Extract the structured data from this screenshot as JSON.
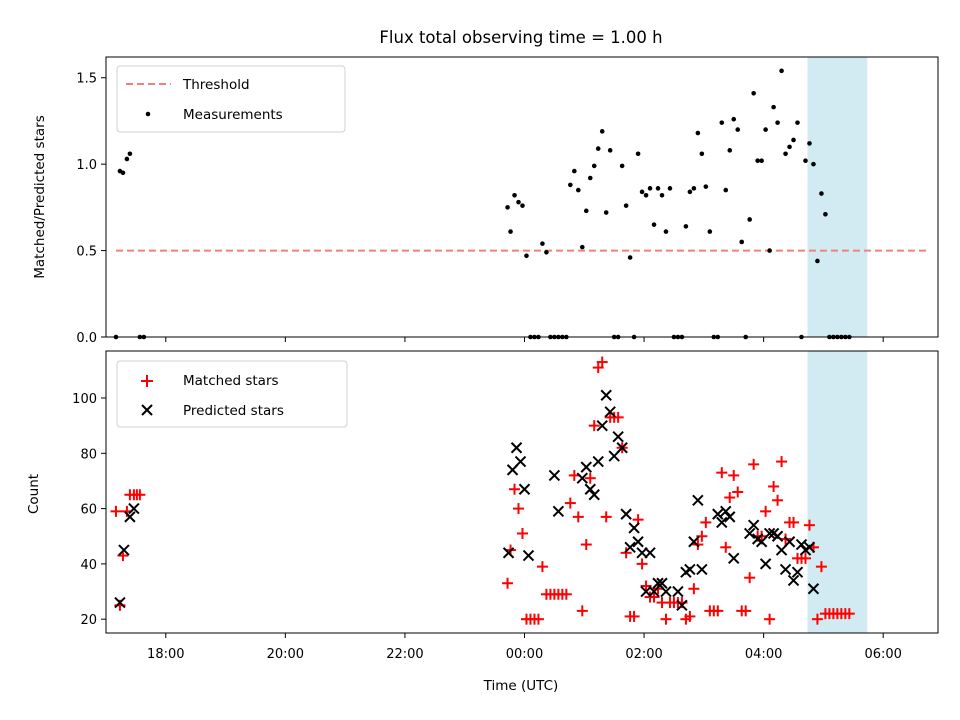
{
  "chart_data": [
    {
      "type": "scatter",
      "title": "Flux total observing time = 1.00 h",
      "xlabel": "",
      "ylabel": "Matched/Predicted stars",
      "xlim": [
        "17:00",
        "06:55"
      ],
      "ylim": [
        0,
        1.62
      ],
      "yticks": [
        "0.0",
        "0.5",
        "1.0",
        "1.5"
      ],
      "legend_position": "top-left",
      "shaded_region": {
        "x": [
          "04:44",
          "05:44"
        ],
        "color": "#add8e6"
      },
      "series": [
        {
          "name": "Threshold",
          "kind": "dashed-line",
          "color": "#f08080",
          "x": [
            "17:10",
            "06:46"
          ],
          "y": [
            0.5,
            0.5
          ]
        },
        {
          "name": "Measurements",
          "kind": "points",
          "color": "#000000",
          "points": [
            [
              "17:10",
              0
            ],
            [
              "17:14",
              0.96
            ],
            [
              "17:17",
              0.95
            ],
            [
              "17:21",
              1.03
            ],
            [
              "17:24",
              1.06
            ],
            [
              "17:34",
              0
            ],
            [
              "17:38",
              0
            ],
            [
              "23:43",
              0.75
            ],
            [
              "23:46",
              0.61
            ],
            [
              "23:50",
              0.82
            ],
            [
              "23:54",
              0.78
            ],
            [
              "23:58",
              0.76
            ],
            [
              "00:02",
              0.47
            ],
            [
              "00:06",
              0
            ],
            [
              "00:10",
              0
            ],
            [
              "00:14",
              0
            ],
            [
              "00:18",
              0.54
            ],
            [
              "00:22",
              0.49
            ],
            [
              "00:26",
              0
            ],
            [
              "00:30",
              0
            ],
            [
              "00:34",
              0
            ],
            [
              "00:38",
              0
            ],
            [
              "00:42",
              0
            ],
            [
              "00:46",
              0.88
            ],
            [
              "00:50",
              0.96
            ],
            [
              "00:54",
              0.85
            ],
            [
              "00:58",
              0.52
            ],
            [
              "01:02",
              0.73
            ],
            [
              "01:06",
              0.92
            ],
            [
              "01:10",
              0.99
            ],
            [
              "01:14",
              1.09
            ],
            [
              "01:18",
              1.19
            ],
            [
              "01:22",
              0.72
            ],
            [
              "01:26",
              1.08
            ],
            [
              "01:30",
              0
            ],
            [
              "01:34",
              0
            ],
            [
              "01:38",
              0.99
            ],
            [
              "01:42",
              0.76
            ],
            [
              "01:46",
              0.46
            ],
            [
              "01:50",
              0
            ],
            [
              "01:54",
              1.06
            ],
            [
              "01:58",
              0.84
            ],
            [
              "02:02",
              0.82
            ],
            [
              "02:06",
              0.86
            ],
            [
              "02:10",
              0.65
            ],
            [
              "02:14",
              0.86
            ],
            [
              "02:18",
              0.82
            ],
            [
              "02:22",
              0.61
            ],
            [
              "02:26",
              0.86
            ],
            [
              "02:30",
              0
            ],
            [
              "02:34",
              0
            ],
            [
              "02:38",
              0
            ],
            [
              "02:42",
              0.64
            ],
            [
              "02:46",
              0.84
            ],
            [
              "02:50",
              0.86
            ],
            [
              "02:54",
              1.18
            ],
            [
              "02:58",
              1.06
            ],
            [
              "03:02",
              0.87
            ],
            [
              "03:06",
              0.61
            ],
            [
              "03:10",
              0
            ],
            [
              "03:14",
              0
            ],
            [
              "03:18",
              1.24
            ],
            [
              "03:22",
              0.85
            ],
            [
              "03:26",
              1.08
            ],
            [
              "03:30",
              1.26
            ],
            [
              "03:34",
              1.2
            ],
            [
              "03:38",
              0.55
            ],
            [
              "03:42",
              0
            ],
            [
              "03:46",
              0.68
            ],
            [
              "03:50",
              1.41
            ],
            [
              "03:54",
              1.02
            ],
            [
              "03:58",
              1.02
            ],
            [
              "04:02",
              1.2
            ],
            [
              "04:06",
              0.5
            ],
            [
              "04:10",
              1.33
            ],
            [
              "04:14",
              1.24
            ],
            [
              "04:18",
              1.54
            ],
            [
              "04:22",
              1.06
            ],
            [
              "04:26",
              1.1
            ],
            [
              "04:30",
              1.14
            ],
            [
              "04:34",
              1.24
            ],
            [
              "04:38",
              0
            ],
            [
              "04:42",
              1.02
            ],
            [
              "04:46",
              1.12
            ],
            [
              "04:50",
              1.0
            ],
            [
              "04:54",
              0.44
            ],
            [
              "04:58",
              0.83
            ],
            [
              "05:02",
              0.71
            ],
            [
              "05:06",
              0
            ],
            [
              "05:10",
              0
            ],
            [
              "05:14",
              0
            ],
            [
              "05:18",
              0
            ],
            [
              "05:22",
              0
            ],
            [
              "05:26",
              0
            ]
          ]
        }
      ]
    },
    {
      "type": "scatter",
      "title": "",
      "xlabel": "Time (UTC)",
      "ylabel": "Count",
      "xlim": [
        "17:00",
        "06:55"
      ],
      "ylim": [
        15,
        117
      ],
      "xticks": [
        "18:00",
        "20:00",
        "22:00",
        "00:00",
        "02:00",
        "04:00",
        "06:00"
      ],
      "yticks": [
        "20",
        "40",
        "60",
        "80",
        "100"
      ],
      "legend_position": "top-left",
      "shaded_region": {
        "x": [
          "04:44",
          "05:44"
        ],
        "color": "#add8e6"
      },
      "series": [
        {
          "name": "Matched stars",
          "marker": "+",
          "color": "#ff0000",
          "points": [
            [
              "17:10",
              59
            ],
            [
              "17:14",
              25
            ],
            [
              "17:17",
              43
            ],
            [
              "17:21",
              59
            ],
            [
              "17:24",
              65
            ],
            [
              "17:28",
              65
            ],
            [
              "17:31",
              65
            ],
            [
              "17:34",
              65
            ],
            [
              "23:43",
              33
            ],
            [
              "23:46",
              45
            ],
            [
              "23:50",
              67
            ],
            [
              "23:54",
              60
            ],
            [
              "23:58",
              51
            ],
            [
              "00:02",
              20
            ],
            [
              "00:06",
              20
            ],
            [
              "00:10",
              20
            ],
            [
              "00:14",
              20
            ],
            [
              "00:18",
              39
            ],
            [
              "00:22",
              29
            ],
            [
              "00:26",
              29
            ],
            [
              "00:30",
              29
            ],
            [
              "00:34",
              29
            ],
            [
              "00:38",
              29
            ],
            [
              "00:42",
              29
            ],
            [
              "00:46",
              62
            ],
            [
              "00:50",
              72
            ],
            [
              "00:54",
              57
            ],
            [
              "00:58",
              23
            ],
            [
              "01:02",
              47
            ],
            [
              "01:06",
              71
            ],
            [
              "01:10",
              90
            ],
            [
              "01:14",
              111
            ],
            [
              "01:18",
              113
            ],
            [
              "01:22",
              57
            ],
            [
              "01:26",
              93
            ],
            [
              "01:30",
              93
            ],
            [
              "01:34",
              93
            ],
            [
              "01:38",
              82
            ],
            [
              "01:42",
              44
            ],
            [
              "01:46",
              21
            ],
            [
              "01:50",
              21
            ],
            [
              "01:54",
              56
            ],
            [
              "01:58",
              40
            ],
            [
              "02:02",
              32
            ],
            [
              "02:06",
              28
            ],
            [
              "02:10",
              28
            ],
            [
              "02:14",
              31
            ],
            [
              "02:18",
              26
            ],
            [
              "02:22",
              20
            ],
            [
              "02:26",
              26
            ],
            [
              "02:30",
              26
            ],
            [
              "02:34",
              26
            ],
            [
              "02:38",
              26
            ],
            [
              "02:42",
              20
            ],
            [
              "02:46",
              21
            ],
            [
              "02:50",
              31
            ],
            [
              "02:54",
              47
            ],
            [
              "02:58",
              50
            ],
            [
              "03:02",
              55
            ],
            [
              "03:06",
              23
            ],
            [
              "03:10",
              23
            ],
            [
              "03:14",
              23
            ],
            [
              "03:18",
              73
            ],
            [
              "03:22",
              46
            ],
            [
              "03:26",
              64
            ],
            [
              "03:30",
              72
            ],
            [
              "03:34",
              66
            ],
            [
              "03:38",
              23
            ],
            [
              "03:42",
              23
            ],
            [
              "03:46",
              35
            ],
            [
              "03:50",
              76
            ],
            [
              "03:54",
              50
            ],
            [
              "03:58",
              50
            ],
            [
              "04:02",
              59
            ],
            [
              "04:06",
              20
            ],
            [
              "04:10",
              68
            ],
            [
              "04:14",
              63
            ],
            [
              "04:18",
              77
            ],
            [
              "04:22",
              49
            ],
            [
              "04:26",
              55
            ],
            [
              "04:30",
              55
            ],
            [
              "04:34",
              42
            ],
            [
              "04:38",
              42
            ],
            [
              "04:42",
              42
            ],
            [
              "04:46",
              54
            ],
            [
              "04:50",
              46
            ],
            [
              "04:54",
              20
            ],
            [
              "04:58",
              39
            ],
            [
              "05:02",
              22
            ],
            [
              "05:06",
              22
            ],
            [
              "05:10",
              22
            ],
            [
              "05:14",
              22
            ],
            [
              "05:18",
              22
            ],
            [
              "05:22",
              22
            ],
            [
              "05:26",
              22
            ]
          ]
        },
        {
          "name": "Predicted stars",
          "marker": "x",
          "color": "#000000",
          "points": [
            [
              "17:14",
              26
            ],
            [
              "17:18",
              45
            ],
            [
              "17:24",
              57
            ],
            [
              "17:28",
              60
            ],
            [
              "23:44",
              44
            ],
            [
              "23:48",
              74
            ],
            [
              "23:52",
              82
            ],
            [
              "23:56",
              77
            ],
            [
              "00:00",
              67
            ],
            [
              "00:04",
              43
            ],
            [
              "00:30",
              72
            ],
            [
              "00:34",
              59
            ],
            [
              "00:58",
              71
            ],
            [
              "01:02",
              75
            ],
            [
              "01:06",
              67
            ],
            [
              "01:10",
              65
            ],
            [
              "01:14",
              77
            ],
            [
              "01:18",
              90
            ],
            [
              "01:22",
              101
            ],
            [
              "01:26",
              95
            ],
            [
              "01:30",
              79
            ],
            [
              "01:34",
              86
            ],
            [
              "01:38",
              82
            ],
            [
              "01:42",
              58
            ],
            [
              "01:46",
              46
            ],
            [
              "01:50",
              53
            ],
            [
              "01:54",
              48
            ],
            [
              "01:58",
              44
            ],
            [
              "02:02",
              30
            ],
            [
              "02:06",
              44
            ],
            [
              "02:10",
              30
            ],
            [
              "02:14",
              33
            ],
            [
              "02:18",
              33
            ],
            [
              "02:22",
              30
            ],
            [
              "02:34",
              30
            ],
            [
              "02:38",
              25
            ],
            [
              "02:42",
              37
            ],
            [
              "02:46",
              38
            ],
            [
              "02:50",
              48
            ],
            [
              "02:54",
              63
            ],
            [
              "02:58",
              38
            ],
            [
              "03:14",
              58
            ],
            [
              "03:18",
              55
            ],
            [
              "03:22",
              59
            ],
            [
              "03:26",
              57
            ],
            [
              "03:30",
              42
            ],
            [
              "03:46",
              51
            ],
            [
              "03:50",
              54
            ],
            [
              "03:54",
              49
            ],
            [
              "03:58",
              48
            ],
            [
              "04:02",
              40
            ],
            [
              "04:06",
              51
            ],
            [
              "04:10",
              51
            ],
            [
              "04:14",
              50
            ],
            [
              "04:18",
              45
            ],
            [
              "04:22",
              38
            ],
            [
              "04:26",
              48
            ],
            [
              "04:30",
              34
            ],
            [
              "04:34",
              37
            ],
            [
              "04:38",
              47
            ],
            [
              "04:42",
              45
            ],
            [
              "04:46",
              46
            ],
            [
              "04:50",
              31
            ]
          ]
        }
      ]
    }
  ]
}
